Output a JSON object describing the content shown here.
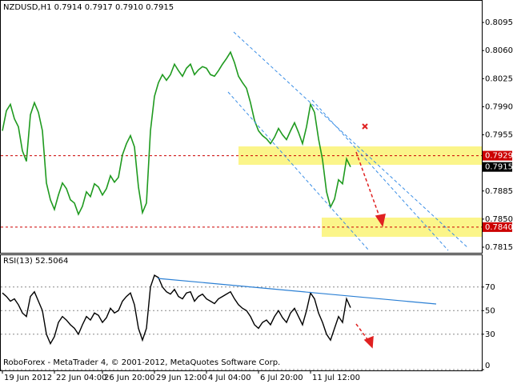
{
  "chart_data": [
    {
      "type": "line",
      "title": "NZDUSD,H1  0.7914 0.7917 0.7910 0.7915",
      "color": "#1f9a1f",
      "values": [
        0.796,
        0.7985,
        0.7993,
        0.7975,
        0.7965,
        0.7935,
        0.7922,
        0.798,
        0.7995,
        0.7983,
        0.796,
        0.7895,
        0.7874,
        0.7862,
        0.788,
        0.7895,
        0.7888,
        0.7874,
        0.787,
        0.7856,
        0.7866,
        0.7884,
        0.7878,
        0.7894,
        0.789,
        0.788,
        0.7888,
        0.7904,
        0.7896,
        0.7902,
        0.793,
        0.7944,
        0.7954,
        0.794,
        0.789,
        0.7858,
        0.787,
        0.796,
        0.8003,
        0.802,
        0.803,
        0.8023,
        0.803,
        0.8043,
        0.8035,
        0.8028,
        0.8038,
        0.8043,
        0.803,
        0.8036,
        0.804,
        0.8038,
        0.803,
        0.8028,
        0.8035,
        0.8043,
        0.805,
        0.8058,
        0.8045,
        0.8028,
        0.802,
        0.8013,
        0.7995,
        0.7973,
        0.796,
        0.7954,
        0.795,
        0.7944,
        0.7952,
        0.7963,
        0.7955,
        0.7949,
        0.796,
        0.797,
        0.7958,
        0.7944,
        0.7965,
        0.7993,
        0.7983,
        0.795,
        0.7924,
        0.7884,
        0.7865,
        0.7875,
        0.7899,
        0.7894,
        0.7925,
        0.7915
      ],
      "ylim": [
        0.7808,
        0.8122
      ],
      "yticks": [
        {
          "value": 0.8095,
          "label": "0.8095"
        },
        {
          "value": 0.806,
          "label": "0.8060"
        },
        {
          "value": 0.8025,
          "label": "0.8025"
        },
        {
          "value": 0.799,
          "label": "0.7990"
        },
        {
          "value": 0.7955,
          "label": "0.7955"
        },
        {
          "value": 0.7885,
          "label": "0.7885"
        },
        {
          "value": 0.785,
          "label": "0.7850"
        },
        {
          "value": 0.7815,
          "label": "0.7815"
        }
      ],
      "levels": [
        {
          "value": 0.7929,
          "label": "0.7929",
          "color": "#cc0000"
        },
        {
          "value": 0.784,
          "label": "0.7840",
          "color": "#cc0000"
        }
      ],
      "current": {
        "value": 0.7915,
        "label": "0.7915"
      },
      "grid": false
    },
    {
      "type": "line",
      "title": "RSI(13) 52.5064",
      "color": "#000000",
      "values": [
        65,
        62,
        58,
        60,
        55,
        48,
        45,
        62,
        66,
        58,
        50,
        30,
        22,
        28,
        40,
        45,
        42,
        38,
        35,
        30,
        38,
        45,
        42,
        48,
        46,
        40,
        44,
        52,
        48,
        50,
        58,
        62,
        65,
        55,
        35,
        25,
        35,
        70,
        80,
        78,
        70,
        66,
        64,
        68,
        62,
        60,
        65,
        66,
        58,
        62,
        64,
        60,
        58,
        56,
        60,
        62,
        64,
        66,
        60,
        55,
        52,
        50,
        45,
        38,
        35,
        40,
        42,
        38,
        45,
        50,
        44,
        40,
        48,
        52,
        45,
        38,
        50,
        65,
        60,
        48,
        40,
        30,
        25,
        35,
        45,
        40,
        60,
        52.5064
      ],
      "categories": [
        "19 Jun 2012",
        null,
        null,
        null,
        null,
        null,
        null,
        null,
        null,
        null,
        null,
        null,
        null,
        "22 Jun 04:00",
        null,
        null,
        null,
        null,
        null,
        null,
        null,
        null,
        null,
        null,
        null,
        "26 Jun 20:00",
        null,
        null,
        null,
        null,
        null,
        null,
        null,
        null,
        null,
        null,
        null,
        null,
        "29 Jun 12:00",
        null,
        null,
        null,
        null,
        null,
        null,
        null,
        null,
        null,
        null,
        null,
        null,
        "4 Jul 04:00",
        null,
        null,
        null,
        null,
        null,
        null,
        null,
        null,
        null,
        null,
        null,
        null,
        "6 Jul 20:00",
        null,
        null,
        null,
        null,
        null,
        null,
        null,
        null,
        null,
        null,
        null,
        null,
        "11 Jul 12:00",
        null,
        null,
        null,
        null,
        null,
        null,
        null,
        null,
        null,
        null
      ],
      "ylim": [
        0,
        97
      ],
      "yticks": [
        70,
        50,
        30,
        0
      ],
      "grid": true
    }
  ],
  "footer": "RoboForex - MetaTrader 4, © 2001-2012, MetaQuotes Software Corp."
}
